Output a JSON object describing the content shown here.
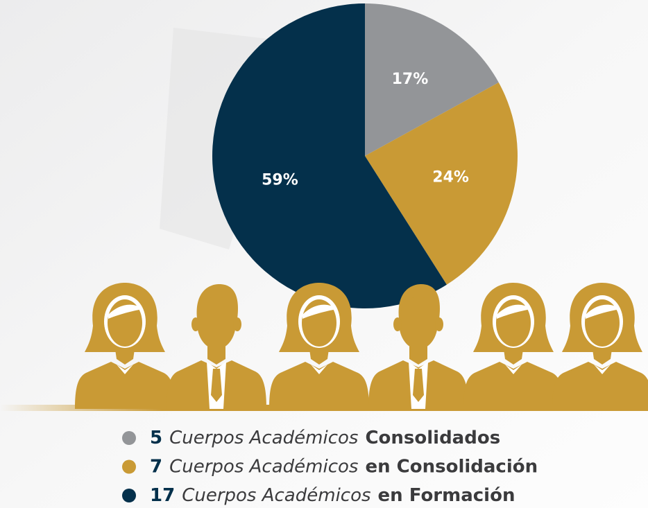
{
  "chart_data": {
    "type": "pie",
    "categories": [
      "Consolidados",
      "en Consolidación",
      "en Formación"
    ],
    "values": [
      17,
      24,
      59
    ],
    "value_labels": [
      "17%",
      "24%",
      "59%"
    ],
    "colors": [
      "#939598",
      "#c99a35",
      "#04304b"
    ],
    "legend": [
      {
        "count": 5,
        "text": "Cuerpos Académicos",
        "bold": "Consolidados"
      },
      {
        "count": 7,
        "text": "Cuerpos Académicos",
        "bold": "en Consolidación"
      },
      {
        "count": 17,
        "text": "Cuerpos Académicos",
        "bold": "en Formación"
      }
    ]
  }
}
